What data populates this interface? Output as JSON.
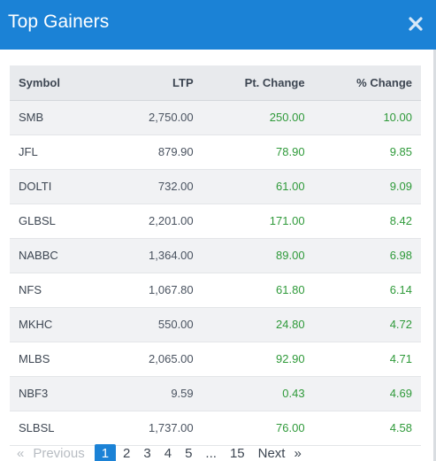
{
  "modal": {
    "title": "Top Gainers",
    "close_icon": "close-icon"
  },
  "colors": {
    "header_bg": "#1b82d6",
    "gain_text": "#2f9a3a",
    "row_alt_bg": "#f1f2f4",
    "table_head_bg": "#e8eaed",
    "active_page_bg": "#1b82d6"
  },
  "table": {
    "headers": {
      "symbol": "Symbol",
      "ltp": "LTP",
      "pt_change": "Pt. Change",
      "pct_change": "% Change"
    },
    "rows": [
      {
        "symbol": "SMB",
        "ltp": "2,750.00",
        "pt_change": "250.00",
        "pct_change": "10.00"
      },
      {
        "symbol": "JFL",
        "ltp": "879.90",
        "pt_change": "78.90",
        "pct_change": "9.85"
      },
      {
        "symbol": "DOLTI",
        "ltp": "732.00",
        "pt_change": "61.00",
        "pct_change": "9.09"
      },
      {
        "symbol": "GLBSL",
        "ltp": "2,201.00",
        "pt_change": "171.00",
        "pct_change": "8.42"
      },
      {
        "symbol": "NABBC",
        "ltp": "1,364.00",
        "pt_change": "89.00",
        "pct_change": "6.98"
      },
      {
        "symbol": "NFS",
        "ltp": "1,067.80",
        "pt_change": "61.80",
        "pct_change": "6.14"
      },
      {
        "symbol": "MKHC",
        "ltp": "550.00",
        "pt_change": "24.80",
        "pct_change": "4.72"
      },
      {
        "symbol": "MLBS",
        "ltp": "2,065.00",
        "pt_change": "92.90",
        "pct_change": "4.71"
      },
      {
        "symbol": "NBF3",
        "ltp": "9.59",
        "pt_change": "0.43",
        "pct_change": "4.69"
      },
      {
        "symbol": "SLBSL",
        "ltp": "1,737.00",
        "pt_change": "76.00",
        "pct_change": "4.58"
      }
    ]
  },
  "pagination": {
    "prev_arrow": "«",
    "prev_label": "Previous",
    "pages": [
      "1",
      "2",
      "3",
      "4",
      "5",
      "...",
      "15"
    ],
    "current_page": "1",
    "next_label": "Next",
    "next_arrow": "»"
  }
}
